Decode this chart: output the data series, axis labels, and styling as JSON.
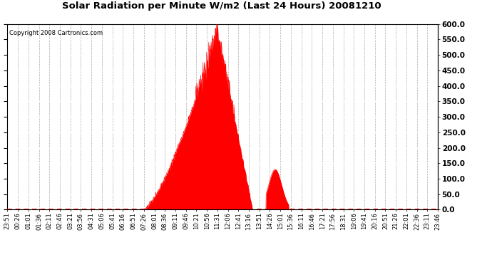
{
  "title": "Solar Radiation per Minute W/m2 (Last 24 Hours) 20081210",
  "copyright": "Copyright 2008 Cartronics.com",
  "background_color": "#ffffff",
  "plot_bg_color": "#ffffff",
  "fill_color": "#ff0000",
  "line_color": "#ff0000",
  "dashed_line_color": "#ff0000",
  "grid_color_v": "#aaaaaa",
  "grid_color_h": "#ffffff",
  "ylim": [
    0.0,
    600.0
  ],
  "yticks": [
    0.0,
    50.0,
    100.0,
    150.0,
    200.0,
    250.0,
    300.0,
    350.0,
    400.0,
    450.0,
    500.0,
    550.0,
    600.0
  ],
  "x_labels": [
    "23:51",
    "00:26",
    "01:01",
    "01:36",
    "02:11",
    "02:46",
    "03:21",
    "03:56",
    "04:31",
    "05:06",
    "05:41",
    "06:16",
    "06:51",
    "07:26",
    "08:01",
    "08:36",
    "09:11",
    "09:46",
    "10:21",
    "10:56",
    "11:31",
    "12:06",
    "12:41",
    "13:16",
    "13:51",
    "14:26",
    "15:01",
    "15:36",
    "16:11",
    "16:46",
    "17:21",
    "17:56",
    "18:31",
    "19:06",
    "19:41",
    "20:16",
    "20:51",
    "21:26",
    "22:01",
    "22:36",
    "23:11",
    "23:46"
  ],
  "n_points": 1440
}
